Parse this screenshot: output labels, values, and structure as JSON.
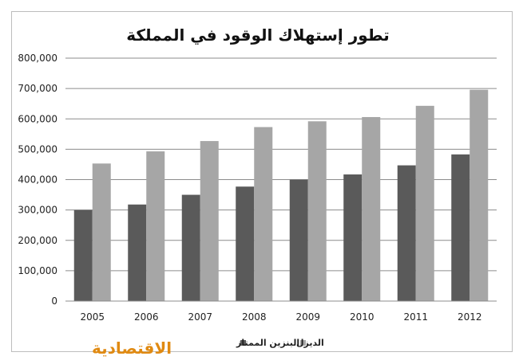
{
  "chart_data": {
    "type": "bar",
    "title": "تطور إستهلاك الوقود في المملكة",
    "categories": [
      "2005",
      "2006",
      "2007",
      "2008",
      "2009",
      "2010",
      "2011",
      "2012"
    ],
    "series": [
      {
        "name": "البنزين الممتاز",
        "color": "#5a5a5a",
        "values": [
          300000,
          318000,
          350000,
          377000,
          400000,
          417000,
          447000,
          483000
        ]
      },
      {
        "name": "الديزل",
        "color": "#a6a6a6",
        "values": [
          453000,
          493000,
          527000,
          573000,
          592000,
          606000,
          643000,
          696000
        ]
      }
    ],
    "ylim": [
      0,
      800000
    ],
    "yticks": [
      0,
      100000,
      200000,
      300000,
      400000,
      500000,
      600000,
      700000,
      800000
    ],
    "ytick_labels": [
      "0",
      "100,000",
      "200,000",
      "300,000",
      "400,000",
      "500,000",
      "600,000",
      "700,000",
      "800,000"
    ],
    "grid": true,
    "legend": "bottom-center"
  },
  "brand": {
    "logo_text": "الاقتصادية",
    "color": "#e08a12"
  }
}
